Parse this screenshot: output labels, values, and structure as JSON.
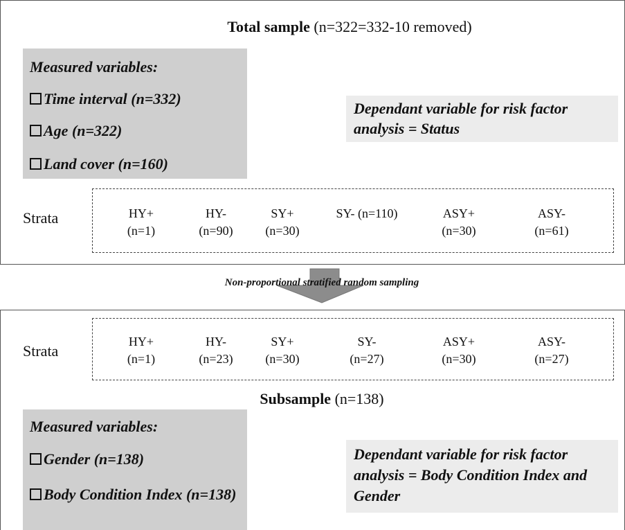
{
  "top": {
    "title_bold": "Total sample",
    "title_rest": "(n=322=332-10 removed)",
    "measured": {
      "heading": "Measured variables:",
      "items": [
        "Time interval (n=332)",
        "Age (n=322)",
        "Land cover (n=160)"
      ]
    },
    "dependant": "Dependant variable for risk factor analysis = Status",
    "strata": {
      "label": "Strata",
      "items": [
        {
          "name": "HY+",
          "n": "(n=1)"
        },
        {
          "name": "HY-",
          "n": "(n=90)"
        },
        {
          "name": "SY+",
          "n": "(n=30)"
        },
        {
          "name": "SY- (n=110)"
        },
        {
          "name": "ASY+",
          "n": "(n=30)"
        },
        {
          "name": "ASY-",
          "n": "(n=61)"
        }
      ]
    }
  },
  "arrow_label": "Non-proportional stratified random sampling",
  "bottom": {
    "strata": {
      "label": "Strata",
      "items": [
        {
          "name": "HY+",
          "n": "(n=1)"
        },
        {
          "name": "HY-",
          "n": "(n=23)"
        },
        {
          "name": "SY+",
          "n": "(n=30)"
        },
        {
          "name": "SY-",
          "n": "(n=27)"
        },
        {
          "name": "ASY+",
          "n": "(n=30)"
        },
        {
          "name": "ASY-",
          "n": "(n=27)"
        }
      ]
    },
    "title_bold": "Subsample",
    "title_rest": "(n=138)",
    "measured": {
      "heading": "Measured variables:",
      "items": [
        "Gender (n=138)",
        "Body Condition Index (n=138)"
      ]
    },
    "dependant": "Dependant variable for risk factor analysis = Body Condition Index and Gender"
  }
}
